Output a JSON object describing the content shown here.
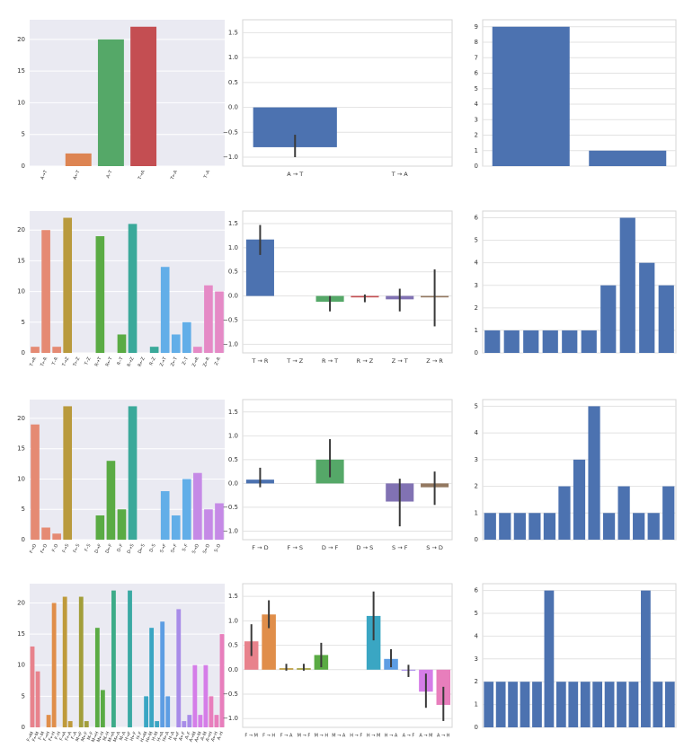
{
  "chart_data": [
    {
      "type": "bar",
      "style": "dark",
      "categories": [
        "A→T",
        "A←T",
        "A–T",
        "T→A",
        "T←A",
        "T–A"
      ],
      "values": [
        0,
        2,
        20,
        22,
        0,
        0
      ],
      "colors": [
        "#4c72b0",
        "#dd8452",
        "#55a868",
        "#c44e52",
        "#8172b3",
        "#937860"
      ],
      "ylim": [
        0,
        23.1
      ],
      "yticks": [
        0,
        5,
        10,
        15,
        20
      ],
      "grid": true
    },
    {
      "type": "bar",
      "style": "white",
      "categories": [
        "A → T",
        "T → A"
      ],
      "values": [
        -0.8,
        0
      ],
      "ci_low": [
        -1.0,
        null
      ],
      "ci_high": [
        -0.55,
        null
      ],
      "colors": [
        "#4c72b0",
        "#dd8452"
      ],
      "ylim": [
        -1.18,
        1.76
      ],
      "yticks": [
        {
          "value": -1,
          "label": "−1.0"
        },
        {
          "value": -0.5,
          "label": "−0.5"
        },
        {
          "value": 0,
          "label": "0.0"
        },
        0.5,
        {
          "value": 1,
          "label": "1.0"
        },
        1.5
      ],
      "grid": true
    },
    {
      "type": "bar",
      "style": "white",
      "values": [
        9,
        1
      ],
      "colors": [
        "#4c72b0"
      ],
      "ylim": [
        0,
        9.45
      ],
      "yticks": [
        0,
        1,
        2,
        3,
        4,
        5,
        6,
        7,
        8,
        9
      ],
      "grid": true
    },
    {
      "type": "bar",
      "style": "dark",
      "categories": [
        "T→R",
        "T←R",
        "T–R",
        "T→Z",
        "T←Z",
        "T–Z",
        "R→T",
        "R←T",
        "R–T",
        "R→Z",
        "R←Z",
        "R–Z",
        "Z→T",
        "Z←T",
        "Z–T",
        "Z→R",
        "Z←R",
        "Z–R"
      ],
      "values": [
        1,
        20,
        1,
        22,
        0,
        0,
        19,
        0,
        3,
        21,
        0,
        1,
        14,
        3,
        5,
        1,
        11,
        10
      ],
      "colors": [
        "#e58a73",
        "#b99a3d",
        "#5aab44",
        "#3aa99a",
        "#62aee8",
        "#e58ac6"
      ],
      "ylim": [
        0,
        23.1
      ],
      "yticks": [
        0,
        5,
        10,
        15,
        20
      ],
      "grid": true
    },
    {
      "type": "bar",
      "style": "white",
      "categories": [
        "T → R",
        "T → Z",
        "R → T",
        "R → Z",
        "Z → T",
        "Z → R"
      ],
      "values": [
        1.17,
        0,
        -0.12,
        -0.03,
        -0.07,
        -0.03
      ],
      "ci_low": [
        0.85,
        null,
        -0.32,
        -0.13,
        -0.32,
        -0.63
      ],
      "ci_high": [
        1.47,
        null,
        0.0,
        0.03,
        0.15,
        0.55
      ],
      "colors": [
        "#4c72b0",
        "#dd8452",
        "#55a868",
        "#c44e52",
        "#8172b3",
        "#937860"
      ],
      "ylim": [
        -1.18,
        1.76
      ],
      "yticks": [
        {
          "value": -1,
          "label": "−1.0"
        },
        {
          "value": -0.5,
          "label": "−0.5"
        },
        {
          "value": 0,
          "label": "0.0"
        },
        0.5,
        {
          "value": 1,
          "label": "1.0"
        },
        1.5
      ],
      "grid": true
    },
    {
      "type": "bar",
      "style": "white",
      "values": [
        1,
        1,
        1,
        1,
        1,
        1,
        3,
        6,
        4,
        3
      ],
      "colors": [
        "#4c72b0"
      ],
      "ylim": [
        0,
        6.3
      ],
      "yticks": [
        0,
        1,
        2,
        3,
        4,
        5,
        6
      ],
      "grid": true
    },
    {
      "type": "bar",
      "style": "dark",
      "categories": [
        "F→D",
        "F←D",
        "F–D",
        "F→S",
        "F←S",
        "F–S",
        "D→F",
        "D←F",
        "D–F",
        "D→S",
        "D←S",
        "D–S",
        "S→F",
        "S←F",
        "S–F",
        "S→D",
        "S←D",
        "S–D"
      ],
      "values": [
        19,
        2,
        1,
        22,
        0,
        0,
        4,
        13,
        5,
        22,
        0,
        0,
        8,
        4,
        10,
        11,
        5,
        6
      ],
      "colors": [
        "#e58a73",
        "#b99a3d",
        "#5aab44",
        "#3aa99a",
        "#62aee8",
        "#c58ae6"
      ],
      "ylim": [
        0,
        23.1
      ],
      "yticks": [
        0,
        5,
        10,
        15,
        20
      ],
      "grid": true
    },
    {
      "type": "bar",
      "style": "white",
      "categories": [
        "F → D",
        "F → S",
        "D → F",
        "D → S",
        "S → F",
        "S → D"
      ],
      "values": [
        0.08,
        0,
        0.5,
        0,
        -0.38,
        -0.08
      ],
      "ci_low": [
        -0.08,
        null,
        0.13,
        null,
        -0.9,
        -0.45
      ],
      "ci_high": [
        0.33,
        null,
        0.93,
        null,
        0.1,
        0.25
      ],
      "colors": [
        "#4c72b0",
        "#dd8452",
        "#55a868",
        "#c44e52",
        "#8172b3",
        "#937860"
      ],
      "ylim": [
        -1.18,
        1.76
      ],
      "yticks": [
        {
          "value": -1,
          "label": "−1.0"
        },
        {
          "value": -0.5,
          "label": "−0.5"
        },
        {
          "value": 0,
          "label": "0.0"
        },
        0.5,
        {
          "value": 1,
          "label": "1.0"
        },
        1.5
      ],
      "grid": true
    },
    {
      "type": "bar",
      "style": "white",
      "values": [
        1,
        1,
        1,
        1,
        1,
        2,
        3,
        5,
        1,
        2,
        1,
        1,
        2
      ],
      "colors": [
        "#4c72b0"
      ],
      "ylim": [
        0,
        5.25
      ],
      "yticks": [
        0,
        1,
        2,
        3,
        4,
        5
      ],
      "grid": true
    },
    {
      "type": "bar",
      "style": "dark",
      "categories": [
        "F→M",
        "F←M",
        "F–M",
        "F→H",
        "F←H",
        "F–H",
        "F→A",
        "F←A",
        "F–A",
        "M→F",
        "M←F",
        "M–F",
        "M→H",
        "M←H",
        "M–H",
        "M→A",
        "M←A",
        "M–A",
        "H→F",
        "H←F",
        "H–F",
        "H→M",
        "H←M",
        "H–M",
        "H→A",
        "H←A",
        "H–A",
        "A→F",
        "A←F",
        "A–F",
        "A→M",
        "A←M",
        "A–M",
        "A→H",
        "A←H",
        "A–H"
      ],
      "values": [
        13,
        9,
        0,
        2,
        20,
        0,
        21,
        1,
        0,
        21,
        1,
        0,
        16,
        6,
        0,
        22,
        0,
        0,
        22,
        0,
        0,
        5,
        16,
        1,
        17,
        5,
        0,
        19,
        1,
        2,
        10,
        2,
        10,
        5,
        2,
        15
      ],
      "colors": [
        "#e8828c",
        "#e08e4a",
        "#bf9a3a",
        "#a29e3a",
        "#5aab44",
        "#3dab88",
        "#3aa9a3",
        "#3aa6c3",
        "#5d9de3",
        "#a88ce8",
        "#d57de8",
        "#e87ebc"
      ],
      "ylim": [
        0,
        23.1
      ],
      "yticks": [
        0,
        5,
        10,
        15,
        20
      ],
      "grid": true
    },
    {
      "type": "bar",
      "style": "white",
      "categories": [
        "F → M",
        "F → H",
        "F → A",
        "M → F",
        "M → H",
        "M → A",
        "H → F",
        "H → M",
        "H → A",
        "A → F",
        "A → M",
        "A → H"
      ],
      "values": [
        0.58,
        1.13,
        0.03,
        0.03,
        0.3,
        0,
        0,
        1.1,
        0.22,
        -0.02,
        -0.45,
        -0.72
      ],
      "ci_low": [
        0.28,
        0.85,
        -0.02,
        -0.02,
        0.05,
        null,
        null,
        0.6,
        0.05,
        -0.15,
        -0.78,
        -1.05
      ],
      "ci_high": [
        0.93,
        1.42,
        0.12,
        0.12,
        0.55,
        null,
        null,
        1.6,
        0.42,
        0.1,
        -0.08,
        -0.35
      ],
      "colors": [
        "#e8828c",
        "#e08e4a",
        "#bf9a3a",
        "#a29e3a",
        "#5aab44",
        "#3dab88",
        "#3aa9a3",
        "#3aa6c3",
        "#5d9de3",
        "#a88ce8",
        "#d57de8",
        "#e87ebc"
      ],
      "ylim": [
        -1.18,
        1.76
      ],
      "yticks": [
        {
          "value": -1,
          "label": "−1.0"
        },
        {
          "value": -0.5,
          "label": "−0.5"
        },
        {
          "value": 0,
          "label": "0.0"
        },
        0.5,
        {
          "value": 1,
          "label": "1.0"
        },
        1.5
      ],
      "grid": true
    },
    {
      "type": "bar",
      "style": "white",
      "values": [
        2,
        2,
        2,
        2,
        2,
        6,
        2,
        2,
        2,
        2,
        2,
        2,
        2,
        6,
        2,
        2
      ],
      "colors": [
        "#4c72b0"
      ],
      "ylim": [
        0,
        6.3
      ],
      "yticks": [
        0,
        1,
        2,
        3,
        4,
        5,
        6
      ],
      "grid": true
    }
  ]
}
